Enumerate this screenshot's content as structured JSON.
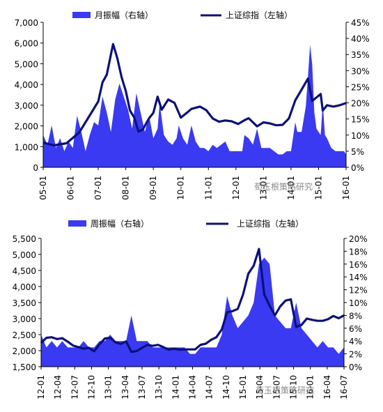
{
  "watermark": "荀玉根策略研究",
  "chart_data": [
    {
      "type": "area+line",
      "legend": [
        {
          "name": "月振幅（右轴）",
          "kind": "area",
          "color": "#3a3af2"
        },
        {
          "name": "上证综指（左轴）",
          "kind": "line",
          "color": "#0c1078"
        }
      ],
      "left_axis": {
        "ticks": [
          "0",
          "1,000",
          "2,000",
          "3,000",
          "4,000",
          "5,000",
          "6,000",
          "7,000"
        ],
        "range": [
          0,
          7000
        ]
      },
      "right_axis": {
        "ticks": [
          "0%",
          "5%",
          "10%",
          "15%",
          "20%",
          "25%",
          "30%",
          "35%",
          "40%",
          "45%"
        ],
        "range": [
          0,
          45
        ]
      },
      "x_ticks": [
        "05-01",
        "06-01",
        "07-01",
        "08-01",
        "09-01",
        "10-01",
        "11-01",
        "12-01",
        "13-01",
        "14-01",
        "15-01",
        "16-01"
      ],
      "x_start": "2005-01",
      "x_end": "2016-12",
      "index_series": {
        "name": "上证综指（左轴）",
        "points": [
          [
            "2005-01",
            1190
          ],
          [
            "2005-06",
            1060
          ],
          [
            "2005-12",
            1160
          ],
          [
            "2006-06",
            1680
          ],
          [
            "2006-12",
            2680
          ],
          [
            "2007-03",
            3180
          ],
          [
            "2007-05",
            4100
          ],
          [
            "2007-07",
            4470
          ],
          [
            "2007-10",
            5950
          ],
          [
            "2007-12",
            5260
          ],
          [
            "2008-02",
            4350
          ],
          [
            "2008-04",
            3690
          ],
          [
            "2008-06",
            2740
          ],
          [
            "2008-08",
            2400
          ],
          [
            "2008-10",
            1730
          ],
          [
            "2008-12",
            1820
          ],
          [
            "2009-03",
            2370
          ],
          [
            "2009-05",
            2630
          ],
          [
            "2009-07",
            3410
          ],
          [
            "2009-09",
            2780
          ],
          [
            "2009-12",
            3270
          ],
          [
            "2010-03",
            3110
          ],
          [
            "2010-06",
            2400
          ],
          [
            "2010-09",
            2650
          ],
          [
            "2010-11",
            2820
          ],
          [
            "2011-03",
            2930
          ],
          [
            "2011-06",
            2760
          ],
          [
            "2011-09",
            2360
          ],
          [
            "2011-12",
            2200
          ],
          [
            "2012-03",
            2260
          ],
          [
            "2012-06",
            2220
          ],
          [
            "2012-09",
            2090
          ],
          [
            "2012-12",
            2270
          ],
          [
            "2013-02",
            2370
          ],
          [
            "2013-06",
            1980
          ],
          [
            "2013-09",
            2170
          ],
          [
            "2013-12",
            2120
          ],
          [
            "2014-03",
            2030
          ],
          [
            "2014-06",
            2050
          ],
          [
            "2014-09",
            2360
          ],
          [
            "2014-12",
            3230
          ],
          [
            "2015-03",
            3750
          ],
          [
            "2015-06",
            4280
          ],
          [
            "2015-08",
            3200
          ],
          [
            "2015-12",
            3540
          ],
          [
            "2016-01",
            2740
          ],
          [
            "2016-03",
            3000
          ],
          [
            "2016-06",
            2930
          ],
          [
            "2016-09",
            3000
          ],
          [
            "2016-12",
            3100
          ]
        ]
      },
      "amplitude_series": {
        "name": "月振幅（右轴）",
        "points": [
          [
            "2005-01",
            10
          ],
          [
            "2005-03",
            7
          ],
          [
            "2005-05",
            13
          ],
          [
            "2005-07",
            6
          ],
          [
            "2005-09",
            9
          ],
          [
            "2005-11",
            5
          ],
          [
            "2006-01",
            8
          ],
          [
            "2006-03",
            6
          ],
          [
            "2006-05",
            16
          ],
          [
            "2006-07",
            11
          ],
          [
            "2006-09",
            5
          ],
          [
            "2006-11",
            10
          ],
          [
            "2007-01",
            14
          ],
          [
            "2007-03",
            13
          ],
          [
            "2007-05",
            22
          ],
          [
            "2007-07",
            17
          ],
          [
            "2007-09",
            11
          ],
          [
            "2007-11",
            21
          ],
          [
            "2008-01",
            26
          ],
          [
            "2008-03",
            22
          ],
          [
            "2008-05",
            18
          ],
          [
            "2008-07",
            12
          ],
          [
            "2008-09",
            23
          ],
          [
            "2008-11",
            17
          ],
          [
            "2009-01",
            11
          ],
          [
            "2009-03",
            16
          ],
          [
            "2009-05",
            9
          ],
          [
            "2009-07",
            12
          ],
          [
            "2009-08",
            20
          ],
          [
            "2009-10",
            10
          ],
          [
            "2009-12",
            8
          ],
          [
            "2010-02",
            7
          ],
          [
            "2010-04",
            9
          ],
          [
            "2010-05",
            13
          ],
          [
            "2010-07",
            9
          ],
          [
            "2010-09",
            7
          ],
          [
            "2010-11",
            13
          ],
          [
            "2011-01",
            8
          ],
          [
            "2011-03",
            6
          ],
          [
            "2011-05",
            6
          ],
          [
            "2011-07",
            5
          ],
          [
            "2011-09",
            7
          ],
          [
            "2011-11",
            6
          ],
          [
            "2012-01",
            7
          ],
          [
            "2012-03",
            8
          ],
          [
            "2012-05",
            5
          ],
          [
            "2012-07",
            5
          ],
          [
            "2012-09",
            5
          ],
          [
            "2012-11",
            5
          ],
          [
            "2012-12",
            10
          ],
          [
            "2013-02",
            9
          ],
          [
            "2013-04",
            7
          ],
          [
            "2013-06",
            12
          ],
          [
            "2013-08",
            6
          ],
          [
            "2013-10",
            6
          ],
          [
            "2013-12",
            6
          ],
          [
            "2014-02",
            5
          ],
          [
            "2014-04",
            4
          ],
          [
            "2014-06",
            4
          ],
          [
            "2014-08",
            5
          ],
          [
            "2014-10",
            5
          ],
          [
            "2014-12",
            14
          ],
          [
            "2015-01",
            11
          ],
          [
            "2015-03",
            11
          ],
          [
            "2015-05",
            19
          ],
          [
            "2015-06",
            28
          ],
          [
            "2015-07",
            38
          ],
          [
            "2015-08",
            32
          ],
          [
            "2015-09",
            17
          ],
          [
            "2015-10",
            12
          ],
          [
            "2015-11",
            11
          ],
          [
            "2015-12",
            10
          ],
          [
            "2016-01",
            20
          ],
          [
            "2016-02",
            10
          ],
          [
            "2016-03",
            9
          ],
          [
            "2016-05",
            6
          ],
          [
            "2016-07",
            5
          ],
          [
            "2016-09",
            5
          ],
          [
            "2016-11",
            5
          ],
          [
            "2016-12",
            4
          ]
        ]
      }
    },
    {
      "type": "area+line",
      "legend": [
        {
          "name": "周振幅（右轴）",
          "kind": "area",
          "color": "#3a3af2"
        },
        {
          "name": "上证综指（左轴）",
          "kind": "line",
          "color": "#0c1078"
        }
      ],
      "left_axis": {
        "ticks": [
          "1,500",
          "2,000",
          "2,500",
          "3,000",
          "3,500",
          "4,000",
          "4,500",
          "5,000",
          "5,500"
        ],
        "range": [
          1500,
          5500
        ]
      },
      "right_axis": {
        "ticks": [
          "0%",
          "2%",
          "4%",
          "6%",
          "8%",
          "10%",
          "12%",
          "14%",
          "16%",
          "18%",
          "20%"
        ],
        "range": [
          0,
          20
        ]
      },
      "x_ticks": [
        "12-01",
        "12-04",
        "12-07",
        "12-10",
        "13-01",
        "13-04",
        "13-07",
        "13-10",
        "14-01",
        "14-04",
        "14-07",
        "14-10",
        "15-01",
        "15-04",
        "15-07",
        "15-10",
        "16-01",
        "16-04",
        "16-07"
      ],
      "x_start": "2012-01",
      "x_end": "2016-10",
      "index_series": {
        "name": "上证综指（左轴）",
        "points": [
          [
            "2012-01",
            2240
          ],
          [
            "2012-02",
            2400
          ],
          [
            "2012-03",
            2420
          ],
          [
            "2012-04",
            2360
          ],
          [
            "2012-05",
            2390
          ],
          [
            "2012-06",
            2280
          ],
          [
            "2012-07",
            2160
          ],
          [
            "2012-08",
            2110
          ],
          [
            "2012-09",
            2060
          ],
          [
            "2012-10",
            2090
          ],
          [
            "2012-11",
            1980
          ],
          [
            "2012-12",
            2200
          ],
          [
            "2013-01",
            2380
          ],
          [
            "2013-02",
            2400
          ],
          [
            "2013-03",
            2260
          ],
          [
            "2013-04",
            2210
          ],
          [
            "2013-05",
            2290
          ],
          [
            "2013-06",
            1960
          ],
          [
            "2013-07",
            1990
          ],
          [
            "2013-08",
            2090
          ],
          [
            "2013-09",
            2180
          ],
          [
            "2013-10",
            2150
          ],
          [
            "2013-11",
            2180
          ],
          [
            "2013-12",
            2110
          ],
          [
            "2014-01",
            2030
          ],
          [
            "2014-02",
            2060
          ],
          [
            "2014-03",
            2030
          ],
          [
            "2014-04",
            2040
          ],
          [
            "2014-05",
            2040
          ],
          [
            "2014-06",
            2040
          ],
          [
            "2014-07",
            2180
          ],
          [
            "2014-08",
            2220
          ],
          [
            "2014-09",
            2340
          ],
          [
            "2014-10",
            2420
          ],
          [
            "2014-11",
            2660
          ],
          [
            "2014-12",
            3200
          ],
          [
            "2015-01",
            3230
          ],
          [
            "2015-02",
            3300
          ],
          [
            "2015-03",
            3750
          ],
          [
            "2015-04",
            4400
          ],
          [
            "2015-05",
            4650
          ],
          [
            "2015-06",
            5170
          ],
          [
            "2015-07",
            3750
          ],
          [
            "2015-08",
            3400
          ],
          [
            "2015-09",
            3100
          ],
          [
            "2015-10",
            3380
          ],
          [
            "2015-11",
            3560
          ],
          [
            "2015-12",
            3600
          ],
          [
            "2016-01",
            2740
          ],
          [
            "2016-02",
            2800
          ],
          [
            "2016-03",
            3000
          ],
          [
            "2016-04",
            2960
          ],
          [
            "2016-05",
            2930
          ],
          [
            "2016-06",
            2930
          ],
          [
            "2016-07",
            2980
          ],
          [
            "2016-08",
            3080
          ],
          [
            "2016-09",
            3010
          ],
          [
            "2016-10",
            3100
          ]
        ]
      },
      "amplitude_series": {
        "name": "周振幅（右轴）",
        "points": [
          [
            "2012-01",
            5
          ],
          [
            "2012-02",
            3
          ],
          [
            "2012-03",
            4
          ],
          [
            "2012-04",
            3
          ],
          [
            "2012-05",
            4
          ],
          [
            "2012-06",
            3
          ],
          [
            "2012-07",
            3
          ],
          [
            "2012-08",
            3
          ],
          [
            "2012-09",
            4
          ],
          [
            "2012-10",
            3
          ],
          [
            "2012-11",
            3
          ],
          [
            "2012-12",
            4
          ],
          [
            "2013-01",
            4
          ],
          [
            "2013-02",
            5
          ],
          [
            "2013-03",
            4
          ],
          [
            "2013-04",
            4
          ],
          [
            "2013-05",
            4
          ],
          [
            "2013-06",
            8
          ],
          [
            "2013-07",
            4
          ],
          [
            "2013-08",
            4
          ],
          [
            "2013-09",
            4
          ],
          [
            "2013-10",
            3
          ],
          [
            "2013-11",
            3
          ],
          [
            "2013-12",
            3
          ],
          [
            "2014-01",
            3
          ],
          [
            "2014-02",
            3
          ],
          [
            "2014-03",
            3
          ],
          [
            "2014-04",
            3
          ],
          [
            "2014-05",
            2
          ],
          [
            "2014-06",
            2
          ],
          [
            "2014-07",
            3
          ],
          [
            "2014-08",
            3
          ],
          [
            "2014-09",
            3
          ],
          [
            "2014-10",
            3
          ],
          [
            "2014-11",
            5
          ],
          [
            "2014-12",
            11
          ],
          [
            "2015-01",
            8
          ],
          [
            "2015-02",
            6
          ],
          [
            "2015-03",
            7
          ],
          [
            "2015-04",
            8
          ],
          [
            "2015-05",
            10
          ],
          [
            "2015-06",
            16
          ],
          [
            "2015-07",
            17
          ],
          [
            "2015-08",
            16
          ],
          [
            "2015-09",
            8
          ],
          [
            "2015-10",
            7
          ],
          [
            "2015-11",
            6
          ],
          [
            "2015-12",
            6
          ],
          [
            "2016-01",
            10
          ],
          [
            "2016-02",
            6
          ],
          [
            "2016-03",
            5
          ],
          [
            "2016-04",
            4
          ],
          [
            "2016-05",
            3
          ],
          [
            "2016-06",
            4
          ],
          [
            "2016-07",
            3
          ],
          [
            "2016-08",
            3
          ],
          [
            "2016-09",
            2
          ],
          [
            "2016-10",
            3
          ]
        ]
      }
    }
  ]
}
